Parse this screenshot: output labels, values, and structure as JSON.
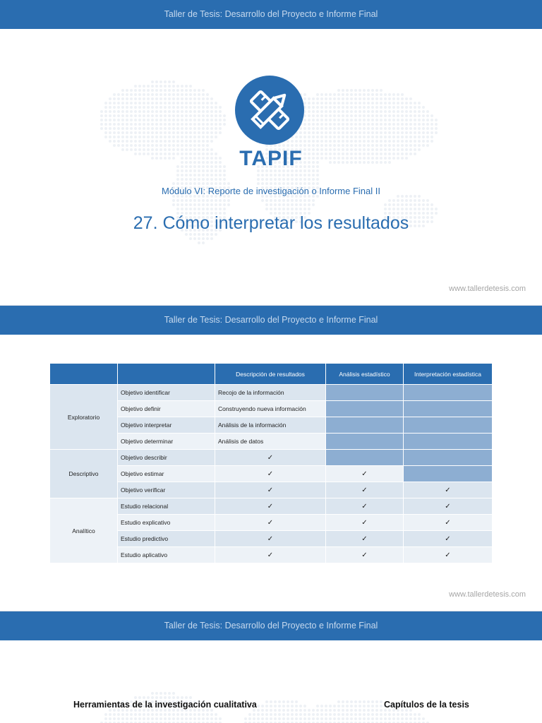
{
  "banner_text": "Taller de Tesis: Desarrollo del Proyecto e Informe Final",
  "footer_url": "www.tallerdetesis.com",
  "slide1": {
    "brand": "TAPIF",
    "module": "Módulo VI: Reporte de investigación o Informe Final II",
    "title": "27. Cómo interpretar los resultados",
    "logo_icon": "pencil-ruler-icon"
  },
  "table": {
    "headers": [
      "",
      "",
      "Descripción de resultados",
      "Análisis estadístico",
      "Interpretación estadística"
    ],
    "groups": [
      "Exploratorio",
      "Descriptivo",
      "Analítico"
    ],
    "check_mark": "✓",
    "rows": [
      {
        "label": "Objetivo identificar",
        "desc": "Recojo de la información"
      },
      {
        "label": "Objetivo definir",
        "desc": "Construyendo nueva información"
      },
      {
        "label": "Objetivo interpretar",
        "desc": "Análisis de la información"
      },
      {
        "label": "Objetivo determinar",
        "desc": "Análisis de datos"
      },
      {
        "label": "Objetivo describir"
      },
      {
        "label": "Objetivo estimar"
      },
      {
        "label": "Objetivo verificar"
      },
      {
        "label": "Estudio relacional"
      },
      {
        "label": "Estudio explicativo"
      },
      {
        "label": "Estudio predictivo"
      },
      {
        "label": "Estudio aplicativo"
      }
    ]
  },
  "slide3": {
    "left_heading": "Herramientas de la investigación cualitativa",
    "right_heading": "Capítulos de la tesis"
  },
  "colors": {
    "brand_blue": "#2a6db0",
    "cell_light": "#dbe5ef",
    "cell_dark": "#8daed2"
  }
}
